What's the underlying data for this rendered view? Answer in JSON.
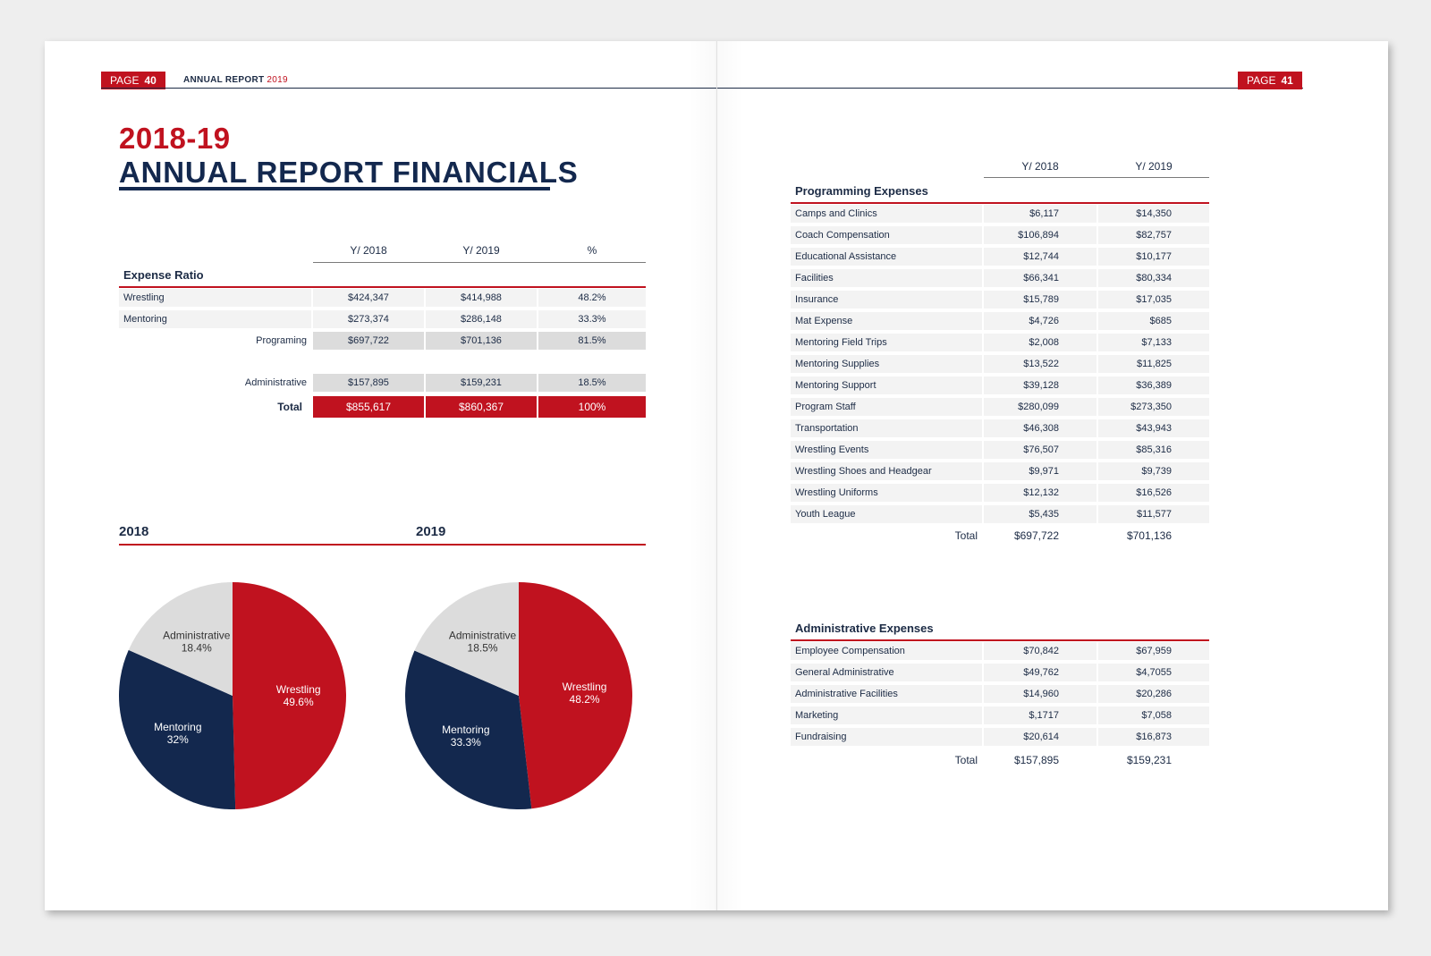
{
  "colors": {
    "red": "#c0121f",
    "navy": "#13284e",
    "grey": "#dcdcdc"
  },
  "left_page": {
    "badge_prefix": "PAGE",
    "badge_number": "40",
    "header_title": "ANNUAL REPORT",
    "header_year": "2019",
    "title_year": "2018-19",
    "title": "ANNUAL REPORT FINANCIALS",
    "expense_ratio": {
      "col_headers": [
        "Y/ 2018",
        "Y/ 2019",
        "%"
      ],
      "section_title": "Expense Ratio",
      "rows": [
        {
          "label": "Wrestling",
          "y2018": "$424,347",
          "y2019": "$414,988",
          "pct": "48.2%"
        },
        {
          "label": "Mentoring",
          "y2018": "$273,374",
          "y2019": "$286,148",
          "pct": "33.3%"
        },
        {
          "label": "Programing",
          "y2018": "$697,722",
          "y2019": "$701,136",
          "pct": "81.5%"
        },
        {
          "label": "Administrative",
          "y2018": "$157,895",
          "y2019": "$159,231",
          "pct": "18.5%"
        }
      ],
      "total": {
        "label": "Total",
        "y2018": "$855,617",
        "y2019": "$860,367",
        "pct": "100%"
      }
    },
    "pie_headings": [
      "2018",
      "2019"
    ]
  },
  "chart_data": [
    {
      "type": "pie",
      "title": "2018",
      "slices": [
        {
          "label": "Wrestling",
          "value": 49.6,
          "display": "49.6%",
          "color": "#c0121f"
        },
        {
          "label": "Mentoring",
          "value": 32,
          "display": "32%",
          "color": "#13284e"
        },
        {
          "label": "Administrative",
          "value": 18.4,
          "display": "18.4%",
          "color": "#dcdcdc"
        }
      ]
    },
    {
      "type": "pie",
      "title": "2019",
      "slices": [
        {
          "label": "Wrestling",
          "value": 48.2,
          "display": "48.2%",
          "color": "#c0121f"
        },
        {
          "label": "Mentoring",
          "value": 33.3,
          "display": "33.3%",
          "color": "#13284e"
        },
        {
          "label": "Administrative",
          "value": 18.5,
          "display": "18.5%",
          "color": "#dcdcdc"
        }
      ]
    }
  ],
  "right_page": {
    "badge_prefix": "PAGE",
    "badge_number": "41",
    "col_headers": [
      "Y/ 2018",
      "Y/ 2019"
    ],
    "programming": {
      "title": "Programming Expenses",
      "rows": [
        {
          "label": "Camps and Clinics",
          "y2018": "$6,117",
          "y2019": "$14,350"
        },
        {
          "label": "Coach Compensation",
          "y2018": "$106,894",
          "y2019": "$82,757"
        },
        {
          "label": "Educational Assistance",
          "y2018": "$12,744",
          "y2019": "$10,177"
        },
        {
          "label": "Facilities",
          "y2018": "$66,341",
          "y2019": "$80,334"
        },
        {
          "label": "Insurance",
          "y2018": "$15,789",
          "y2019": "$17,035"
        },
        {
          "label": "Mat Expense",
          "y2018": "$4,726",
          "y2019": "$685"
        },
        {
          "label": "Mentoring Field Trips",
          "y2018": "$2,008",
          "y2019": "$7,133"
        },
        {
          "label": "Mentoring Supplies",
          "y2018": "$13,522",
          "y2019": "$11,825"
        },
        {
          "label": "Mentoring Support",
          "y2018": "$39,128",
          "y2019": "$36,389"
        },
        {
          "label": "Program Staff",
          "y2018": "$280,099",
          "y2019": "$273,350"
        },
        {
          "label": "Transportation",
          "y2018": "$46,308",
          "y2019": "$43,943"
        },
        {
          "label": "Wrestling Events",
          "y2018": "$76,507",
          "y2019": "$85,316"
        },
        {
          "label": "Wrestling Shoes and Headgear",
          "y2018": "$9,971",
          "y2019": "$9,739"
        },
        {
          "label": "Wrestling Uniforms",
          "y2018": "$12,132",
          "y2019": "$16,526"
        },
        {
          "label": "Youth League",
          "y2018": "$5,435",
          "y2019": "$11,577"
        }
      ],
      "total": {
        "label": "Total",
        "y2018": "$697,722",
        "y2019": "$701,136"
      }
    },
    "administrative": {
      "title": "Administrative Expenses",
      "rows": [
        {
          "label": "Employee Compensation",
          "y2018": "$70,842",
          "y2019": "$67,959"
        },
        {
          "label": "General Administrative",
          "y2018": "$49,762",
          "y2019": "$4,7055"
        },
        {
          "label": "Administrative Facilities",
          "y2018": "$14,960",
          "y2019": "$20,286"
        },
        {
          "label": "Marketing",
          "y2018": "$,1717",
          "y2019": "$7,058"
        },
        {
          "label": "Fundraising",
          "y2018": "$20,614",
          "y2019": "$16,873"
        }
      ],
      "total": {
        "label": "Total",
        "y2018": "$157,895",
        "y2019": "$159,231"
      }
    }
  }
}
